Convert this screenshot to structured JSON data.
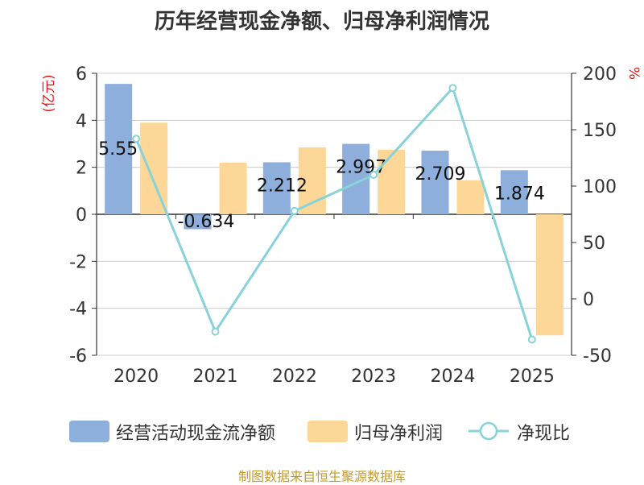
{
  "chart_data": {
    "type": "bar",
    "title": "历年经营现金净额、归母净利润情况",
    "categories": [
      "2020",
      "2021",
      "2022",
      "2023",
      "2024",
      "2025"
    ],
    "left_axis": {
      "label": "(亿元)",
      "ylim": [
        -6,
        6
      ],
      "ticks": [
        6,
        4,
        2,
        0,
        -2,
        -4,
        -6
      ]
    },
    "right_axis": {
      "label": "%",
      "ylim": [
        -50,
        200
      ],
      "ticks": [
        200,
        150,
        100,
        50,
        0,
        -50
      ]
    },
    "series": [
      {
        "name": "经营活动现金流净额",
        "type": "bar",
        "axis": "left",
        "color": "#8eaedb",
        "values": [
          5.55,
          -0.634,
          2.212,
          2.997,
          2.709,
          1.874
        ],
        "data_labels": [
          "5.55",
          "-0.634",
          "2.212",
          "2.997",
          "2.709",
          "1.874"
        ]
      },
      {
        "name": "归母净利润",
        "type": "bar",
        "axis": "left",
        "color": "#fdd797",
        "values": [
          3.9,
          2.2,
          2.85,
          2.75,
          1.45,
          -5.15
        ]
      },
      {
        "name": "净现比",
        "type": "line",
        "axis": "right",
        "color": "#88d2d9",
        "values": [
          142,
          -29,
          78,
          110,
          187,
          -36
        ]
      }
    ],
    "grid": true,
    "legend_position": "bottom"
  },
  "footer": {
    "text": "制图数据来自恒生聚源数据库",
    "color": "#c49a2c"
  },
  "colors": {
    "axis_unit": "#e01818",
    "text": "#333333",
    "grid": "#cccccc"
  }
}
